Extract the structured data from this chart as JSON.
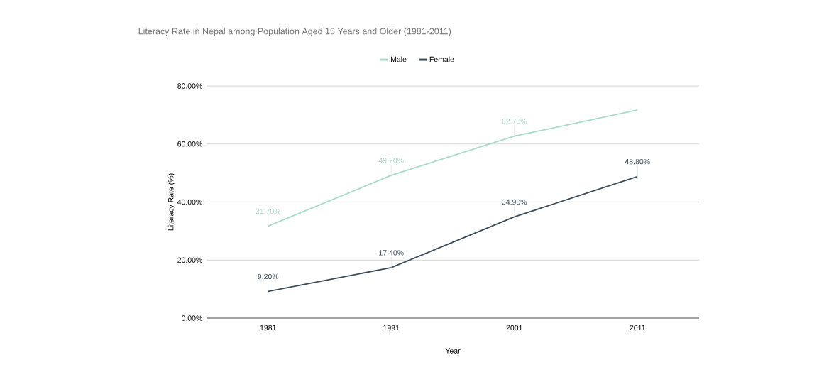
{
  "chart_data": {
    "type": "line",
    "title": "Literacy Rate in Nepal among Population Aged 15 Years and Older (1981-2011)",
    "xlabel": "Year",
    "ylabel": "Literacy Rate (%)",
    "categories": [
      "1981",
      "1991",
      "2001",
      "2011"
    ],
    "series": [
      {
        "name": "Male",
        "color": "#a8dbcb",
        "values": [
          31.7,
          49.2,
          62.7,
          71.7
        ],
        "value_labels": [
          "31.70%",
          "49.20%",
          "62.70%",
          null
        ]
      },
      {
        "name": "Female",
        "color": "#3b4d5a",
        "values": [
          9.2,
          17.4,
          34.9,
          48.8
        ],
        "value_labels": [
          "9.20%",
          "17.40%",
          "34.90%",
          "48.80%"
        ]
      }
    ],
    "ylim": [
      0,
      80
    ],
    "yticks": [
      {
        "value": 0,
        "label": "0.00%"
      },
      {
        "value": 20,
        "label": "20.00%"
      },
      {
        "value": 40,
        "label": "40.00%"
      },
      {
        "value": 60,
        "label": "60.00%"
      },
      {
        "value": 80,
        "label": "80.00%"
      }
    ],
    "grid": "y",
    "legend": "top",
    "marker": "none",
    "line_style": "solid"
  }
}
